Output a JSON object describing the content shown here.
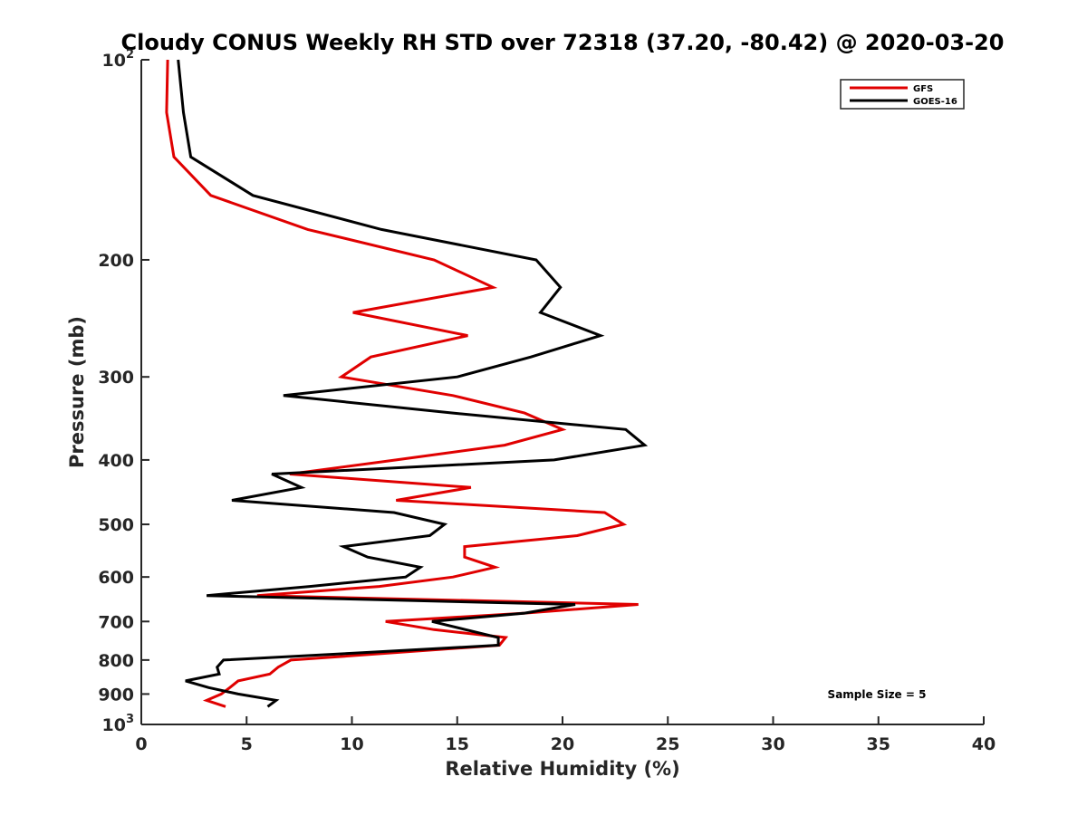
{
  "chart_data": {
    "type": "line",
    "title": "Cloudy CONUS Weekly RH STD over 72318 (37.20, -80.42) @ 2020-03-20",
    "xlabel": "Relative Humidity (%)",
    "ylabel": "Pressure (mb)",
    "xlim": [
      0,
      40
    ],
    "ylim": [
      100,
      1000
    ],
    "yscale": "log",
    "yreverse": true,
    "grid": false,
    "x_ticks": [
      0,
      5,
      10,
      15,
      20,
      25,
      30,
      35,
      40
    ],
    "x_tick_labels": [
      "0",
      "5",
      "10",
      "15",
      "20",
      "25",
      "30",
      "35",
      "40"
    ],
    "y_ticks": [
      100,
      200,
      300,
      400,
      500,
      600,
      700,
      800,
      900,
      1000
    ],
    "y_tick_labels": [
      {
        "base": "10",
        "exp": "2"
      },
      {
        "base": "200",
        "exp": ""
      },
      {
        "base": "300",
        "exp": ""
      },
      {
        "base": "400",
        "exp": ""
      },
      {
        "base": "500",
        "exp": ""
      },
      {
        "base": "600",
        "exp": ""
      },
      {
        "base": "700",
        "exp": ""
      },
      {
        "base": "800",
        "exp": ""
      },
      {
        "base": "900",
        "exp": ""
      },
      {
        "base": "10",
        "exp": "3"
      }
    ],
    "legend_position": "top-right",
    "annotation": "Sample Size = 5",
    "pressure_levels": [
      100,
      120,
      140,
      160,
      180,
      200,
      220,
      240,
      260,
      280,
      300,
      320,
      340,
      360,
      380,
      400,
      420,
      440,
      460,
      480,
      500,
      520,
      540,
      560,
      580,
      600,
      620,
      640,
      660,
      680,
      700,
      720,
      740,
      760,
      780,
      800,
      820,
      840,
      860,
      880,
      900,
      920,
      940
    ],
    "series": [
      {
        "name": "GFS",
        "color": "#e00000",
        "values": [
          1.25,
          1.2,
          1.55,
          3.3,
          7.9,
          13.9,
          16.7,
          10.05,
          15.5,
          10.9,
          9.5,
          14.8,
          18.2,
          20.0,
          17.25,
          12.1,
          7.05,
          15.65,
          12.1,
          22.0,
          22.9,
          20.7,
          15.35,
          15.35,
          16.8,
          14.8,
          11.3,
          5.5,
          23.6,
          18.2,
          11.6,
          13.9,
          17.3,
          17.0,
          12.0,
          7.1,
          6.5,
          6.1,
          4.6,
          4.2,
          3.8,
          3.1,
          4.0
        ]
      },
      {
        "name": "GOES-16",
        "color": "#000000",
        "values": [
          1.75,
          2.0,
          2.35,
          5.3,
          11.4,
          18.75,
          19.9,
          18.95,
          21.8,
          18.5,
          15.0,
          6.75,
          14.8,
          23.0,
          23.9,
          19.6,
          6.2,
          7.6,
          4.3,
          12.0,
          14.4,
          13.7,
          9.6,
          10.75,
          13.25,
          12.55,
          8.0,
          3.1,
          20.6,
          18.2,
          13.8,
          15.4,
          16.95,
          16.95,
          10.5,
          3.9,
          3.6,
          3.7,
          2.1,
          3.2,
          4.6,
          6.4,
          6.0
        ]
      }
    ]
  }
}
